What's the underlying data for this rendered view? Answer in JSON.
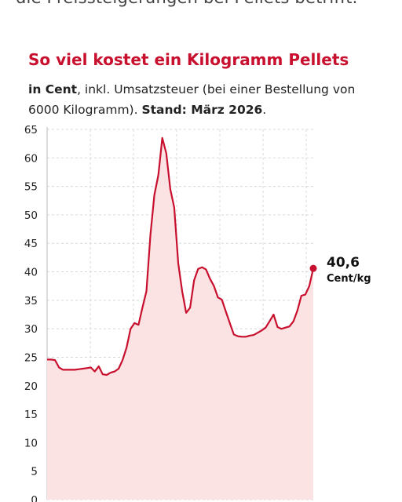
{
  "article": {
    "preceding_text": "die Preissteigerungen bei Pellets betrifft."
  },
  "chart_data": {
    "type": "area",
    "title": "So viel kostet ein Kilogramm Pellets",
    "subtitle": {
      "bold_unit": "in Cent",
      "note": ", inkl. Umsatzsteuer (bei einer Bestellung von 6000 Kilogramm). ",
      "bold_date": "Stand: März 2026",
      "end": "."
    },
    "xlabel": "",
    "ylabel": "",
    "ylim": [
      0,
      65
    ],
    "yticks": [
      "0",
      "5",
      "10",
      "15",
      "20",
      "25",
      "30",
      "35",
      "40",
      "45",
      "50",
      "55",
      "60",
      "65"
    ],
    "grid": true,
    "accent_color": "#c8102e",
    "fill_color": "#fbe3e3",
    "points": [
      [
        0,
        24.6
      ],
      [
        1,
        24.6
      ],
      [
        2,
        24.5
      ],
      [
        3,
        23.2
      ],
      [
        4,
        22.8
      ],
      [
        5,
        22.8
      ],
      [
        6,
        22.8
      ],
      [
        7,
        22.8
      ],
      [
        8,
        22.9
      ],
      [
        9,
        23.0
      ],
      [
        10,
        23.1
      ],
      [
        11,
        23.2
      ],
      [
        12,
        22.5
      ],
      [
        13,
        23.4
      ],
      [
        14,
        22.0
      ],
      [
        15,
        21.9
      ],
      [
        16,
        22.3
      ],
      [
        17,
        22.5
      ],
      [
        18,
        23.0
      ],
      [
        19,
        24.5
      ],
      [
        20,
        26.7
      ],
      [
        21,
        30.0
      ],
      [
        22,
        31.0
      ],
      [
        23,
        30.7
      ],
      [
        24,
        33.7
      ],
      [
        25,
        36.6
      ],
      [
        26,
        46.5
      ],
      [
        27,
        53.5
      ],
      [
        28,
        57.0
      ],
      [
        29,
        63.5
      ],
      [
        30,
        60.8
      ],
      [
        31,
        54.5
      ],
      [
        32,
        51.3
      ],
      [
        33,
        41.5
      ],
      [
        34,
        36.6
      ],
      [
        35,
        32.8
      ],
      [
        36,
        33.7
      ],
      [
        37,
        38.5
      ],
      [
        38,
        40.5
      ],
      [
        39,
        40.8
      ],
      [
        40,
        40.4
      ],
      [
        41,
        38.8
      ],
      [
        42,
        37.5
      ],
      [
        43,
        35.5
      ],
      [
        44,
        35.1
      ],
      [
        45,
        33.0
      ],
      [
        46,
        31.0
      ],
      [
        47,
        29.0
      ],
      [
        48,
        28.7
      ],
      [
        49,
        28.6
      ],
      [
        50,
        28.6
      ],
      [
        51,
        28.8
      ],
      [
        52,
        28.9
      ],
      [
        53,
        29.3
      ],
      [
        54,
        29.7
      ],
      [
        55,
        30.2
      ],
      [
        56,
        31.3
      ],
      [
        57,
        32.5
      ],
      [
        58,
        30.3
      ],
      [
        59,
        30.0
      ],
      [
        60,
        30.2
      ],
      [
        61,
        30.4
      ],
      [
        62,
        31.3
      ],
      [
        63,
        33.2
      ],
      [
        64,
        35.8
      ],
      [
        65,
        36.0
      ],
      [
        66,
        37.5
      ],
      [
        67,
        40.6
      ]
    ],
    "callout": {
      "value": "40,6",
      "unit": "Cent/kg"
    }
  }
}
